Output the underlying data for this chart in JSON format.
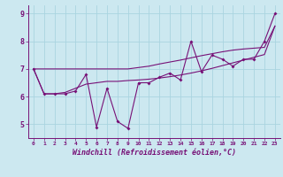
{
  "title": "",
  "xlabel": "Windchill (Refroidissement éolien,°C)",
  "ylabel": "",
  "bg_color": "#cce8f0",
  "line_color": "#771177",
  "grid_color": "#aad4e0",
  "x_hours": [
    0,
    1,
    2,
    3,
    4,
    5,
    6,
    7,
    8,
    9,
    10,
    11,
    12,
    13,
    14,
    15,
    16,
    17,
    18,
    19,
    20,
    21,
    22,
    23
  ],
  "line1": [
    7.0,
    6.1,
    6.1,
    6.1,
    6.2,
    6.8,
    4.9,
    6.3,
    5.1,
    4.85,
    6.5,
    6.5,
    6.7,
    6.85,
    6.6,
    8.0,
    6.9,
    7.5,
    7.35,
    7.1,
    7.35,
    7.35,
    8.0,
    9.0
  ],
  "line2": [
    7.0,
    7.0,
    7.0,
    7.0,
    7.0,
    7.0,
    7.0,
    7.0,
    7.0,
    7.0,
    7.05,
    7.1,
    7.18,
    7.25,
    7.32,
    7.4,
    7.48,
    7.55,
    7.62,
    7.68,
    7.72,
    7.75,
    7.78,
    8.55
  ],
  "line3": [
    7.0,
    6.1,
    6.1,
    6.15,
    6.3,
    6.45,
    6.5,
    6.55,
    6.55,
    6.58,
    6.6,
    6.63,
    6.67,
    6.72,
    6.78,
    6.85,
    6.93,
    7.02,
    7.12,
    7.22,
    7.32,
    7.42,
    7.52,
    8.55
  ],
  "ylim": [
    4.5,
    9.3
  ],
  "yticks": [
    5,
    6,
    7,
    8,
    9
  ],
  "xticks": [
    0,
    1,
    2,
    3,
    4,
    5,
    6,
    7,
    8,
    9,
    10,
    11,
    12,
    13,
    14,
    15,
    16,
    17,
    18,
    19,
    20,
    21,
    22,
    23
  ]
}
